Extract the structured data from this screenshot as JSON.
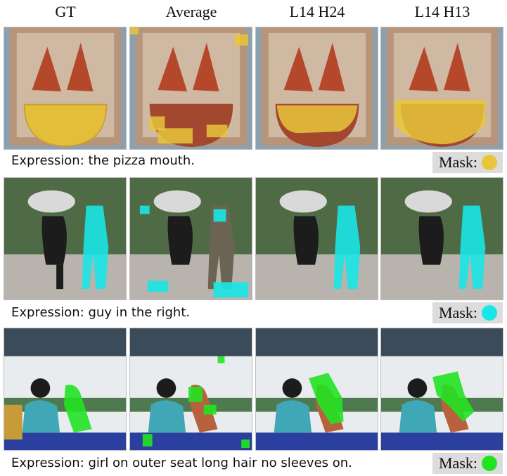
{
  "columns": [
    "GT",
    "Average",
    "L14 H24",
    "L14 H13"
  ],
  "rows": [
    {
      "expression": "Expression: the pizza mouth.",
      "mask_label": "Mask:",
      "mask_color": "#e8c53a"
    },
    {
      "expression": "Expression: guy in the right.",
      "mask_label": "Mask:",
      "mask_color": "#19e6e6"
    },
    {
      "expression": "Expression: girl on outer seat long hair no sleeves on.",
      "mask_label": "Mask:",
      "mask_color": "#22e322"
    }
  ]
}
